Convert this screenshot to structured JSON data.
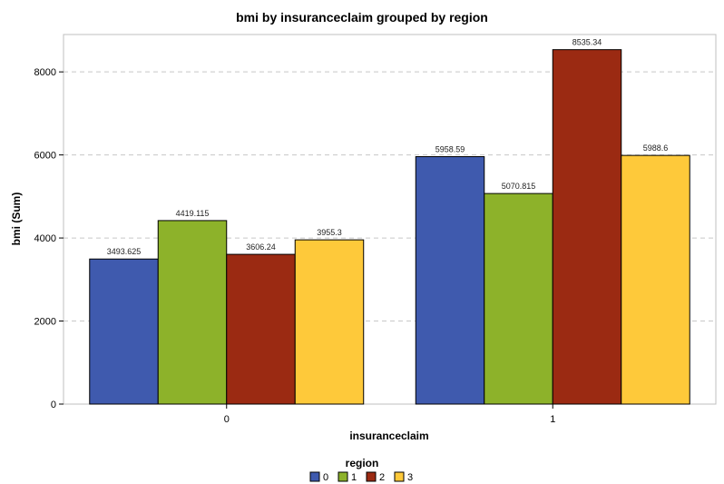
{
  "colors": {
    "background": "#ffffff",
    "plot_border": "#bfbfbf",
    "grid": "#c8c8c8",
    "bar_stroke": "#000000",
    "series": [
      "#3f5aae",
      "#8db22a",
      "#9b2a12",
      "#fec93a"
    ]
  },
  "chart_data": {
    "type": "bar",
    "title": "bmi by insuranceclaim grouped by region",
    "xlabel": "insuranceclaim",
    "ylabel": "bmi (Sum)",
    "categories": [
      "0",
      "1"
    ],
    "yticks": [
      0,
      2000,
      4000,
      6000,
      8000
    ],
    "ylim": [
      0,
      8900
    ],
    "grid": "horizontal dashed",
    "legend": {
      "title": "region",
      "placement": "bottom-center"
    },
    "series": [
      {
        "name": "0",
        "values": [
          3493.625,
          5958.59
        ],
        "labels": [
          "3493.625",
          "5958.59"
        ]
      },
      {
        "name": "1",
        "values": [
          4419.115,
          5070.815
        ],
        "labels": [
          "4419.115",
          "5070.815"
        ]
      },
      {
        "name": "2",
        "values": [
          3606.24,
          8535.34
        ],
        "labels": [
          "3606.24",
          "8535.34"
        ]
      },
      {
        "name": "3",
        "values": [
          3955.3,
          5988.6
        ],
        "labels": [
          "3955.3",
          "5988.6"
        ]
      }
    ]
  }
}
